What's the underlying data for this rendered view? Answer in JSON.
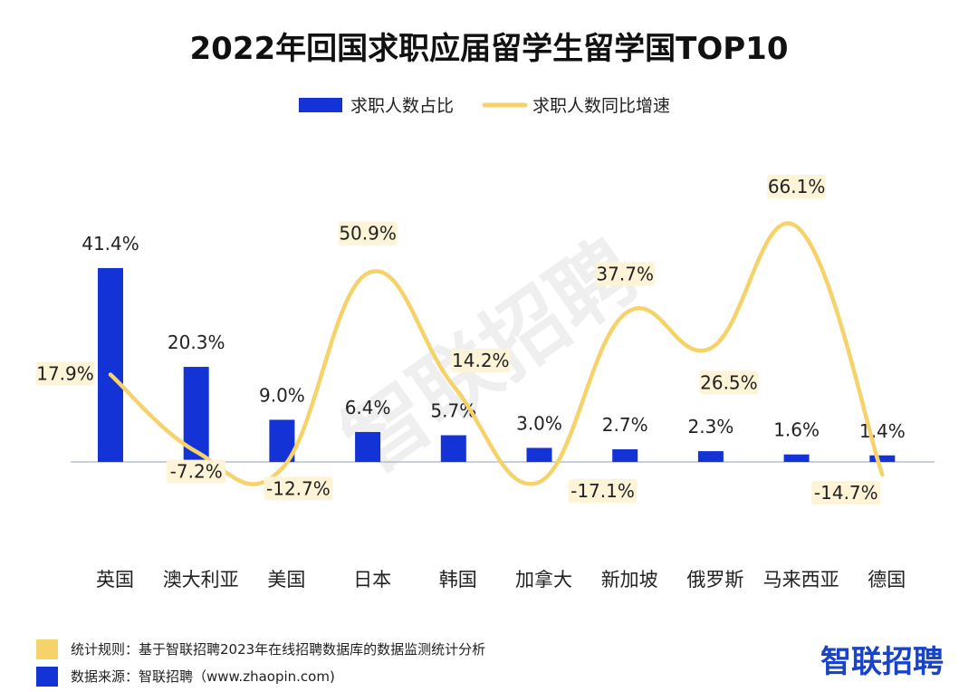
{
  "chart_data": {
    "type": "bar",
    "title": "2022年回国求职应届留学生留学国TOP10",
    "categories": [
      "英国",
      "澳大利亚",
      "美国",
      "日本",
      "韩国",
      "加拿大",
      "新加坡",
      "俄罗斯",
      "马来西亚",
      "德国"
    ],
    "series": [
      {
        "name": "求职人数占比",
        "type": "bar",
        "color": "#1433d6",
        "values": [
          41.4,
          20.3,
          9.0,
          6.4,
          5.7,
          3.0,
          2.7,
          2.3,
          1.6,
          1.4
        ],
        "labels": [
          "41.4%",
          "20.3%",
          "9.0%",
          "6.4%",
          "5.7%",
          "3.0%",
          "2.7%",
          "2.3%",
          "1.6%",
          "1.4%"
        ]
      },
      {
        "name": "求职人数同比增速",
        "type": "line",
        "smooth": true,
        "color": "#f5d36a",
        "values": [
          17.9,
          -7.2,
          -12.7,
          50.9,
          14.2,
          -17.1,
          37.7,
          26.5,
          66.1,
          -14.7
        ],
        "labels": [
          "17.9%",
          "-7.2%",
          "-12.7%",
          "50.9%",
          "14.2%",
          "-17.1%",
          "37.7%",
          "26.5%",
          "66.1%",
          "-14.7%"
        ]
      }
    ],
    "legend_position": "top-center",
    "grid": false
  },
  "footer": {
    "rule": "统计规则：基于智联招聘2023年在线招聘数据库的数据监测统计分析",
    "source": "数据来源：智联招聘（www.zhaopin.com)",
    "rule_color": "#f5d36a",
    "source_color": "#1433d6"
  },
  "brand": "智联招聘",
  "watermark": "智联招聘"
}
